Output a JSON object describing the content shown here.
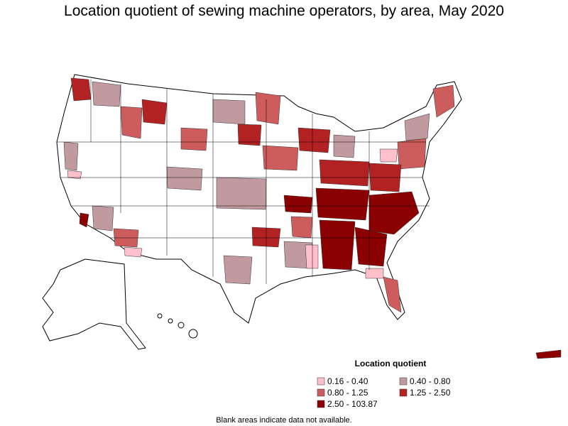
{
  "title": "Location quotient of sewing machine operators, by area, May 2020",
  "legend": {
    "title": "Location quotient",
    "items": [
      {
        "label": "0.16 - 0.40",
        "color": "#ffc0cb"
      },
      {
        "label": "0.40 - 0.80",
        "color": "#c09a9e"
      },
      {
        "label": "0.80 - 1.25",
        "color": "#cd5c5c"
      },
      {
        "label": "1.25 - 2.50",
        "color": "#b22222"
      },
      {
        "label": "2.50 - 103.87",
        "color": "#8b0000"
      }
    ]
  },
  "note": "Blank areas indicate data not available."
}
